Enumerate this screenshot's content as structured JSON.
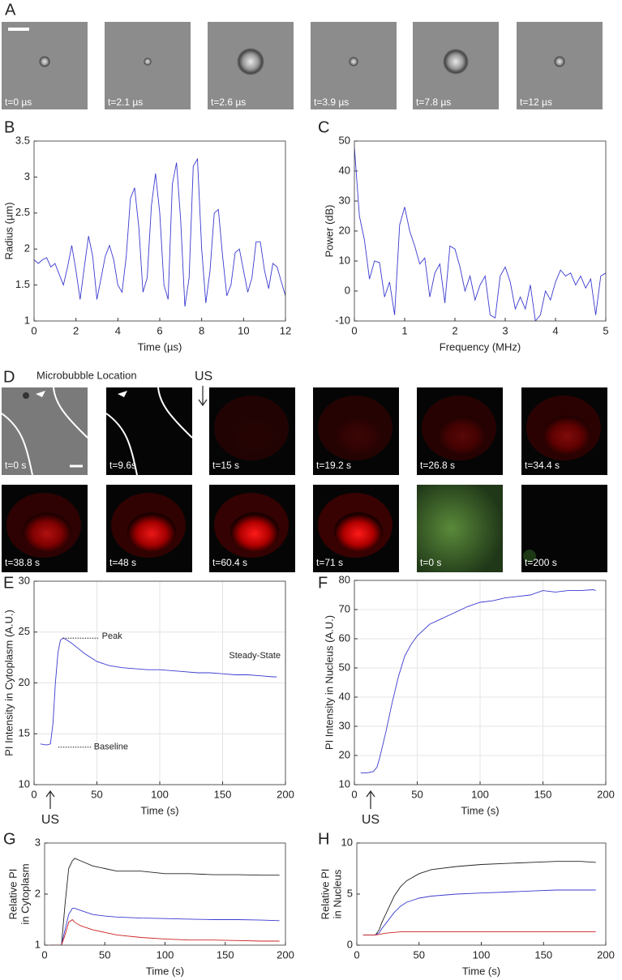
{
  "image_panels": [
    {
      "label": "A",
      "captions": [
        "t=0 µs",
        "t=2.1 µs",
        "t=2.6 µs",
        "t=3.9 µs",
        "t=7.8 µs",
        "t=12 µs"
      ]
    },
    {
      "label": "D",
      "title": "Microbubble Location",
      "marker": "US",
      "captions": [
        "t=0 s",
        "t=9.6s",
        "t=15 s",
        "t=19.2 s",
        "t=26.8 s",
        "t=34.4 s",
        "t=38.8 s",
        "t=48 s",
        "t=60.4 s",
        "t=71 s",
        "t=0 s",
        "t=200 s"
      ]
    }
  ],
  "chart_data": [
    {
      "type": "line",
      "panel_label": "B",
      "xlabel": "Time (µs)",
      "ylabel": "Radius (µm)",
      "color": "#3a3ad0",
      "grid": false,
      "x": [
        0,
        0.2,
        0.4,
        0.6,
        0.8,
        1.0,
        1.2,
        1.4,
        1.6,
        1.8,
        2.0,
        2.2,
        2.4,
        2.6,
        2.8,
        3.0,
        3.2,
        3.4,
        3.6,
        3.8,
        4.0,
        4.2,
        4.4,
        4.6,
        4.8,
        5.0,
        5.2,
        5.4,
        5.6,
        5.8,
        6.0,
        6.2,
        6.4,
        6.6,
        6.8,
        7.0,
        7.2,
        7.4,
        7.6,
        7.8,
        8.0,
        8.2,
        8.4,
        8.6,
        8.8,
        9.0,
        9.2,
        9.4,
        9.6,
        9.8,
        10.0,
        10.2,
        10.4,
        10.6,
        10.8,
        11.0,
        11.2,
        11.4,
        11.6,
        11.8,
        12.0
      ],
      "values": [
        1.85,
        1.8,
        1.85,
        1.88,
        1.75,
        1.8,
        1.65,
        1.5,
        1.75,
        2.05,
        1.7,
        1.3,
        1.75,
        2.18,
        1.9,
        1.3,
        1.6,
        1.9,
        2.05,
        1.85,
        1.5,
        1.4,
        1.9,
        2.7,
        2.85,
        2.3,
        1.4,
        1.6,
        2.6,
        3.05,
        2.5,
        1.5,
        1.3,
        2.9,
        3.2,
        2.4,
        1.2,
        1.6,
        3.15,
        3.25,
        2.0,
        1.25,
        1.7,
        2.5,
        2.55,
        1.9,
        1.35,
        1.5,
        1.95,
        2.0,
        1.7,
        1.4,
        1.6,
        2.1,
        2.1,
        1.7,
        1.45,
        1.8,
        1.75,
        1.55,
        1.35
      ],
      "xlim": [
        0,
        12
      ],
      "xticks": [
        0,
        2,
        4,
        6,
        8,
        10,
        12
      ],
      "ylim": [
        1,
        3.5
      ],
      "yticks": [
        1,
        1.5,
        2,
        2.5,
        3,
        3.5
      ]
    },
    {
      "type": "line",
      "panel_label": "C",
      "xlabel": "Frequency (MHz)",
      "ylabel": "Power (dB)",
      "color": "#3a3ad0",
      "grid": false,
      "x": [
        0,
        0.1,
        0.2,
        0.3,
        0.4,
        0.5,
        0.6,
        0.7,
        0.8,
        0.9,
        1.0,
        1.1,
        1.2,
        1.3,
        1.4,
        1.5,
        1.6,
        1.7,
        1.8,
        1.9,
        2.0,
        2.1,
        2.2,
        2.3,
        2.4,
        2.5,
        2.6,
        2.7,
        2.8,
        2.9,
        3.0,
        3.1,
        3.2,
        3.3,
        3.4,
        3.5,
        3.6,
        3.7,
        3.8,
        3.9,
        4.0,
        4.1,
        4.2,
        4.3,
        4.4,
        4.5,
        4.6,
        4.7,
        4.8,
        4.9,
        5.0
      ],
      "values": [
        48,
        25,
        17,
        4,
        10,
        9.5,
        -2,
        3,
        -8,
        22,
        28,
        20,
        15,
        9,
        11,
        -2,
        6,
        9,
        -4,
        15,
        14,
        8,
        0,
        5,
        -3,
        2,
        5,
        -8,
        -9,
        5,
        8,
        3,
        -6,
        -2,
        -6,
        2,
        -10,
        -8,
        0,
        -3,
        3,
        7,
        5,
        6,
        2,
        5,
        1,
        4,
        -8,
        5,
        6
      ],
      "xlim": [
        0,
        5
      ],
      "xticks": [
        0,
        1,
        2,
        3,
        4,
        5
      ],
      "ylim": [
        -10,
        50
      ],
      "yticks": [
        -10,
        0,
        10,
        20,
        30,
        40,
        50
      ]
    },
    {
      "type": "line",
      "panel_label": "E",
      "xlabel": "Time (s)",
      "ylabel": "PI Intensity in Cytoplasm (A.U.)",
      "color": "#3a3ad0",
      "grid": true,
      "annotations": {
        "peak": "Peak",
        "baseline": "Baseline",
        "steady_state": "Steady-State",
        "stimulus": "US"
      },
      "x": [
        5,
        10,
        13,
        15,
        17,
        19,
        21,
        23,
        25,
        30,
        35,
        40,
        45,
        50,
        60,
        70,
        80,
        90,
        100,
        110,
        120,
        130,
        140,
        150,
        160,
        170,
        180,
        190,
        193
      ],
      "values": [
        14,
        13.9,
        14,
        16,
        20,
        23,
        24.2,
        24.4,
        24.3,
        23.9,
        23.4,
        22.9,
        22.5,
        22.1,
        21.7,
        21.5,
        21.4,
        21.3,
        21.3,
        21.2,
        21.1,
        21.0,
        21.0,
        20.9,
        20.8,
        20.8,
        20.7,
        20.6,
        20.6
      ],
      "xlim": [
        0,
        200
      ],
      "xticks": [
        0,
        50,
        100,
        150,
        200
      ],
      "ylim": [
        10,
        30
      ],
      "yticks": [
        10,
        15,
        20,
        25,
        30
      ]
    },
    {
      "type": "line",
      "panel_label": "F",
      "xlabel": "Time (s)",
      "ylabel": "PI Intensity in Nucleus (A.U.)",
      "color": "#3a3ad0",
      "grid": true,
      "annotations": {
        "stimulus": "US"
      },
      "x": [
        5,
        10,
        15,
        18,
        20,
        25,
        30,
        35,
        40,
        45,
        50,
        60,
        70,
        80,
        90,
        100,
        110,
        120,
        130,
        140,
        150,
        160,
        170,
        180,
        190,
        192
      ],
      "values": [
        14,
        14,
        14.5,
        16,
        19,
        28,
        38,
        47,
        54,
        58,
        61,
        65,
        67,
        69,
        71,
        72.5,
        73,
        74,
        74.5,
        75,
        76.5,
        76,
        76.5,
        76.5,
        76.8,
        76.5
      ],
      "xlim": [
        0,
        200
      ],
      "xticks": [
        0,
        50,
        100,
        150,
        200
      ],
      "ylim": [
        10,
        80
      ],
      "yticks": [
        10,
        20,
        30,
        40,
        50,
        60,
        70,
        80
      ]
    },
    {
      "type": "line",
      "panel_label": "G",
      "xlabel": "Time (s)",
      "ylabel": [
        "Relative PI",
        "in Cytoplasm"
      ],
      "grid": false,
      "x": [
        5,
        10,
        14,
        17,
        20,
        23,
        25,
        30,
        40,
        50,
        60,
        80,
        100,
        120,
        140,
        160,
        180,
        195
      ],
      "series": [
        {
          "color": "#222222",
          "values": [
            1,
            1,
            1,
            1.8,
            2.5,
            2.65,
            2.7,
            2.65,
            2.55,
            2.5,
            2.45,
            2.45,
            2.4,
            2.4,
            2.38,
            2.38,
            2.37,
            2.37
          ]
        },
        {
          "color": "#3a3ad0",
          "values": [
            1,
            1,
            1,
            1.3,
            1.6,
            1.72,
            1.72,
            1.68,
            1.6,
            1.57,
            1.55,
            1.53,
            1.52,
            1.51,
            1.5,
            1.5,
            1.49,
            1.48
          ]
        },
        {
          "color": "#cc2222",
          "values": [
            1,
            1,
            1,
            1.2,
            1.45,
            1.5,
            1.45,
            1.38,
            1.3,
            1.25,
            1.2,
            1.15,
            1.12,
            1.1,
            1.1,
            1.09,
            1.08,
            1.08
          ]
        }
      ],
      "xlim": [
        0,
        200
      ],
      "xticks": [
        0,
        50,
        100,
        150,
        200
      ],
      "ylim": [
        1,
        3
      ],
      "yticks": [
        1,
        2,
        3
      ]
    },
    {
      "type": "line",
      "panel_label": "H",
      "xlabel": "Time (s)",
      "ylabel": [
        "Relative PI",
        "in Nucleus"
      ],
      "grid": false,
      "x": [
        5,
        10,
        15,
        18,
        20,
        25,
        30,
        35,
        40,
        50,
        60,
        80,
        100,
        120,
        140,
        160,
        180,
        192
      ],
      "series": [
        {
          "color": "#222222",
          "values": [
            1,
            1,
            1,
            1.5,
            2.2,
            3.5,
            4.8,
            5.7,
            6.3,
            7,
            7.4,
            7.7,
            7.9,
            8,
            8.1,
            8.2,
            8.2,
            8.1
          ]
        },
        {
          "color": "#3a3ad0",
          "values": [
            1,
            1,
            1,
            1.2,
            1.6,
            2.4,
            3.2,
            3.8,
            4.2,
            4.6,
            4.8,
            5,
            5.1,
            5.2,
            5.3,
            5.4,
            5.4,
            5.4
          ]
        },
        {
          "color": "#cc2222",
          "values": [
            1,
            1,
            1,
            1.05,
            1.1,
            1.2,
            1.25,
            1.3,
            1.3,
            1.3,
            1.3,
            1.3,
            1.3,
            1.3,
            1.3,
            1.3,
            1.3,
            1.3
          ]
        }
      ],
      "xlim": [
        0,
        200
      ],
      "xticks": [
        0,
        50,
        100,
        150,
        200
      ],
      "ylim": [
        0,
        10
      ],
      "yticks": [
        0,
        5,
        10
      ]
    }
  ]
}
